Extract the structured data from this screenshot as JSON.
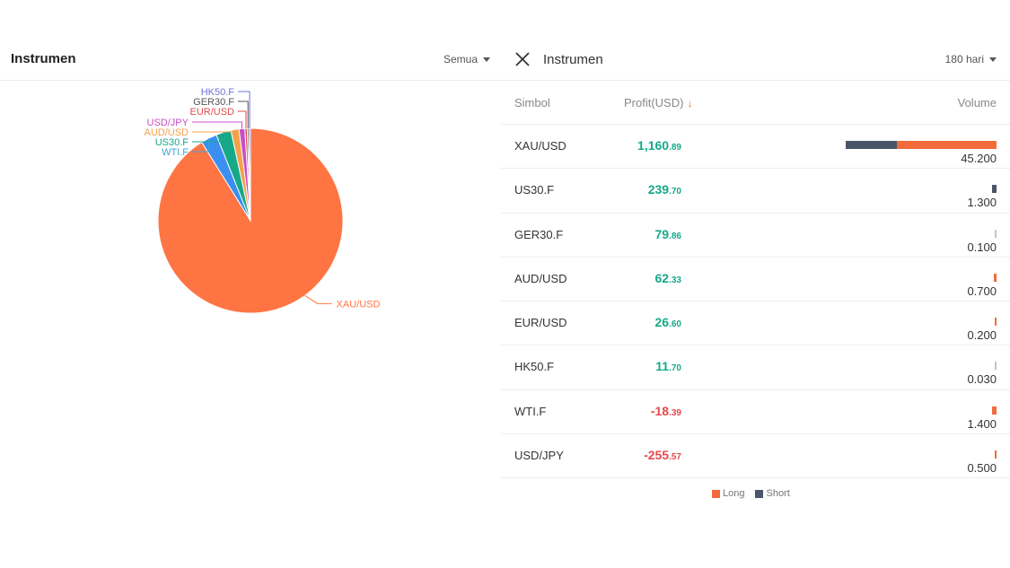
{
  "left": {
    "title": "Instrumen",
    "filter_label": "Semua"
  },
  "right": {
    "title": "Instrumen",
    "period_label": "180 hari",
    "columns": {
      "symbol": "Simbol",
      "profit": "Profit(USD)",
      "volume": "Volume"
    },
    "sort_arrow": "↓",
    "rows": [
      {
        "symbol": "XAU/USD",
        "profit_int": "1,160",
        "profit_dec": ".89",
        "sign": "pos",
        "volume": "45.200",
        "long": 0.663,
        "short": 0.337
      },
      {
        "symbol": "US30.F",
        "profit_int": "239",
        "profit_dec": ".70",
        "sign": "pos",
        "volume": "1.300",
        "long": 0.0,
        "short": 1.0
      },
      {
        "symbol": "GER30.F",
        "profit_int": "79",
        "profit_dec": ".86",
        "sign": "pos",
        "volume": "0.100",
        "long": 0.0,
        "short": 1.0
      },
      {
        "symbol": "AUD/USD",
        "profit_int": "62",
        "profit_dec": ".33",
        "sign": "pos",
        "volume": "0.700",
        "long": 1.0,
        "short": 0.0
      },
      {
        "symbol": "EUR/USD",
        "profit_int": "26",
        "profit_dec": ".60",
        "sign": "pos",
        "volume": "0.200",
        "long": 1.0,
        "short": 0.0
      },
      {
        "symbol": "HK50.F",
        "profit_int": "11",
        "profit_dec": ".70",
        "sign": "pos",
        "volume": "0.030",
        "long": 0.0,
        "short": 1.0
      },
      {
        "symbol": "WTI.F",
        "profit_int": "-18",
        "profit_dec": ".39",
        "sign": "neg",
        "volume": "1.400",
        "long": 1.0,
        "short": 0.0
      },
      {
        "symbol": "USD/JPY",
        "profit_int": "-255",
        "profit_dec": ".57",
        "sign": "neg",
        "volume": "0.500",
        "long": 1.0,
        "short": 0.0
      }
    ],
    "legend": {
      "long": "Long",
      "short": "Short"
    },
    "colors": {
      "long": "#f26b3a",
      "short": "#4a5568",
      "positive": "#17a88a",
      "negative": "#e5484d"
    }
  },
  "chart_data": {
    "type": "pie",
    "slices": [
      {
        "label": "XAU/USD",
        "value": 45.2,
        "color": "#ff7443"
      },
      {
        "label": "WTI.F",
        "value": 1.4,
        "color": "#3b8ff0"
      },
      {
        "label": "US30.F",
        "value": 1.3,
        "color": "#16a887"
      },
      {
        "label": "AUD/USD",
        "value": 0.7,
        "color": "#f5a04a"
      },
      {
        "label": "USD/JPY",
        "value": 0.5,
        "color": "#c84fc8"
      },
      {
        "label": "EUR/USD",
        "value": 0.2,
        "color": "#e34b4b"
      },
      {
        "label": "GER30.F",
        "value": 0.1,
        "color": "#555555"
      },
      {
        "label": "HK50.F",
        "value": 0.03,
        "color": "#7070e0"
      }
    ],
    "label_colors": {
      "XAU/USD": "#ff7443",
      "WTI.F": "#3aa6d9",
      "US30.F": "#16a887",
      "AUD/USD": "#f5a04a",
      "USD/JPY": "#c84fc8",
      "EUR/USD": "#e34b4b",
      "GER30.F": "#555555",
      "HK50.F": "#7070e0"
    }
  }
}
